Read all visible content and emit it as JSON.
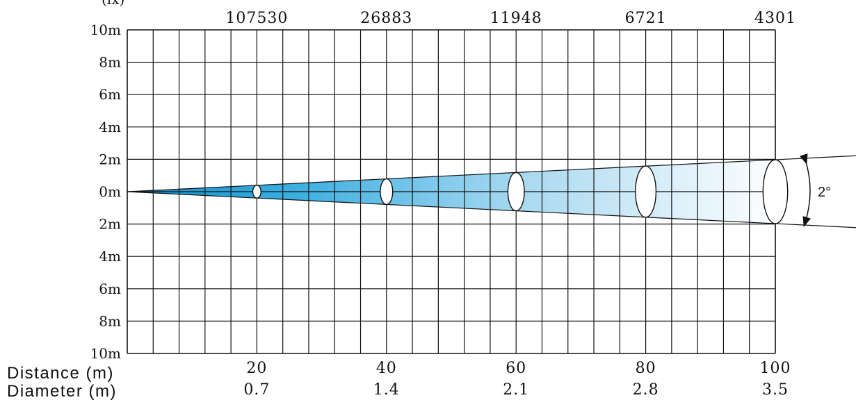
{
  "chart_data": {
    "type": "beam_diagram",
    "top_label_partial": "(lx)",
    "lux_values": [
      "107530",
      "26883",
      "11948",
      "6721",
      "4301"
    ],
    "y_tick_labels": [
      "10m",
      "8m",
      "6m",
      "4m",
      "2m",
      "0m",
      "2m",
      "4m",
      "6m",
      "8m",
      "10m"
    ],
    "y_range": [
      -10,
      10
    ],
    "x_range": [
      0,
      100
    ],
    "grid": true,
    "grid_columns": 25,
    "grid_rows": 10,
    "distance_label": "Distance (m)",
    "diameter_label": "Diameter (m)",
    "distances": [
      "20",
      "40",
      "60",
      "80",
      "100"
    ],
    "diameters": [
      "0.7",
      "1.4",
      "2.1",
      "2.8",
      "3.5"
    ],
    "distance_values": [
      20,
      40,
      60,
      80,
      100
    ],
    "diameter_values": [
      0.7,
      1.4,
      2.1,
      2.8,
      3.5
    ],
    "beam_angle_label": "2°",
    "beam_color": "#1aa0d8"
  }
}
